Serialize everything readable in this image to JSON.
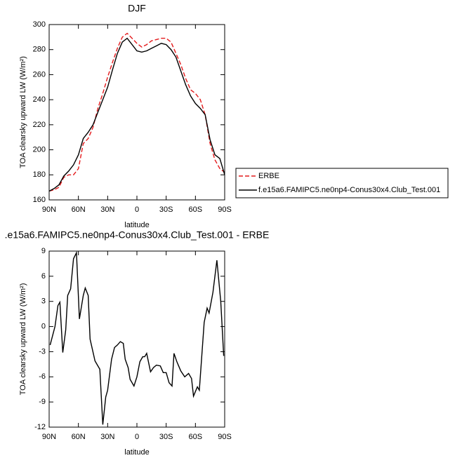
{
  "chart_data": [
    {
      "type": "line",
      "title": "DJF",
      "xlabel": "latitude",
      "ylabel": "TOA clearsky upward LW (W/m²)",
      "x": [
        90,
        85,
        80,
        75,
        70,
        65,
        60,
        55,
        50,
        45,
        40,
        35,
        30,
        25,
        20,
        15,
        10,
        5,
        0,
        -5,
        -10,
        -15,
        -20,
        -25,
        -30,
        -35,
        -40,
        -45,
        -50,
        -55,
        -60,
        -65,
        -70,
        -75,
        -80,
        -85,
        -90
      ],
      "series": [
        {
          "name": "ERBE",
          "color": "#e41a1c",
          "line_style": "dashed",
          "values": [
            167,
            168,
            170,
            178,
            180,
            180,
            185,
            205,
            209,
            218,
            233,
            245,
            258,
            270,
            281,
            290,
            293,
            289,
            285,
            282,
            284,
            287,
            288,
            289,
            289,
            286,
            277,
            268,
            257,
            248,
            245,
            240,
            228,
            205,
            192,
            185,
            182
          ]
        },
        {
          "name": "f.e15a6.FAMIPC5.ne0np4-Conus30x4.Club_Test.001",
          "color": "#000000",
          "line_style": "solid",
          "values": [
            167,
            169,
            172,
            179,
            183,
            188,
            196,
            209,
            214,
            220,
            230,
            240,
            250,
            264,
            277,
            286,
            289,
            284,
            279,
            278,
            279,
            281,
            283,
            285,
            284,
            280,
            274,
            263,
            252,
            243,
            237,
            233,
            228,
            208,
            196,
            193,
            180
          ]
        }
      ],
      "xlim": [
        90,
        -90
      ],
      "xticks": [
        {
          "value": 90,
          "label": "90N"
        },
        {
          "value": 60,
          "label": "60N"
        },
        {
          "value": 30,
          "label": "30N"
        },
        0,
        {
          "value": -30,
          "label": "30S"
        },
        {
          "value": -60,
          "label": "60S"
        },
        {
          "value": -90,
          "label": "90S"
        }
      ],
      "ylim": [
        160,
        300
      ],
      "yticks": [
        160,
        180,
        200,
        220,
        240,
        260,
        280,
        300
      ],
      "grid": false,
      "legend": "outside-right"
    },
    {
      "type": "line",
      "title": ".e15a6.FAMIPC5.ne0np4-Conus30x4.Club_Test.001 - ERBE",
      "xlabel": "latitude",
      "ylabel": "TOA clearsky upward LW (W/m²)",
      "x": [
        89,
        84,
        81,
        79,
        76,
        73,
        71,
        68,
        65,
        62,
        59,
        55,
        53,
        50,
        48,
        43,
        38,
        35,
        32,
        30,
        26,
        23,
        20,
        17,
        14,
        12,
        9,
        7,
        3,
        0,
        -3,
        -6,
        -8,
        -10,
        -14,
        -17,
        -20,
        -24,
        -27,
        -30,
        -33,
        -36,
        -38,
        -41,
        -45,
        -49,
        -53,
        -56,
        -58,
        -62,
        -64,
        -69,
        -72,
        -74,
        -78,
        -82,
        -86,
        -89
      ],
      "color": "#000000",
      "values": [
        -2.2,
        0,
        2.5,
        2.9,
        -3.1,
        -0.4,
        3.7,
        4.5,
        8.1,
        8.8,
        0.9,
        3.7,
        4.6,
        3.7,
        -1.5,
        -4.1,
        -5.1,
        -11.7,
        -8.4,
        -7.6,
        -3.9,
        -2.5,
        -2.2,
        -1.8,
        -2,
        -3.9,
        -4.9,
        -6.3,
        -7.1,
        -6,
        -4.2,
        -3.6,
        -3.6,
        -3.2,
        -5.4,
        -4.9,
        -4.6,
        -4.7,
        -5.5,
        -5.5,
        -6.7,
        -7.1,
        -3.2,
        -4.2,
        -5.3,
        -6,
        -5.6,
        -6.2,
        -8.3,
        -7.2,
        -7.6,
        0.5,
        2.2,
        1.6,
        4.1,
        7.9,
        3,
        -3.5
      ],
      "xlim": [
        90,
        -90
      ],
      "xticks": [
        {
          "value": 90,
          "label": "90N"
        },
        {
          "value": 60,
          "label": "60N"
        },
        {
          "value": 30,
          "label": "30N"
        },
        0,
        {
          "value": -30,
          "label": "30S"
        },
        {
          "value": -60,
          "label": "60S"
        },
        {
          "value": -90,
          "label": "90S"
        }
      ],
      "ylim": [
        -12,
        9
      ],
      "yticks": [
        -12,
        -9,
        -6,
        -3,
        0,
        3,
        6,
        9
      ],
      "grid": false
    }
  ]
}
